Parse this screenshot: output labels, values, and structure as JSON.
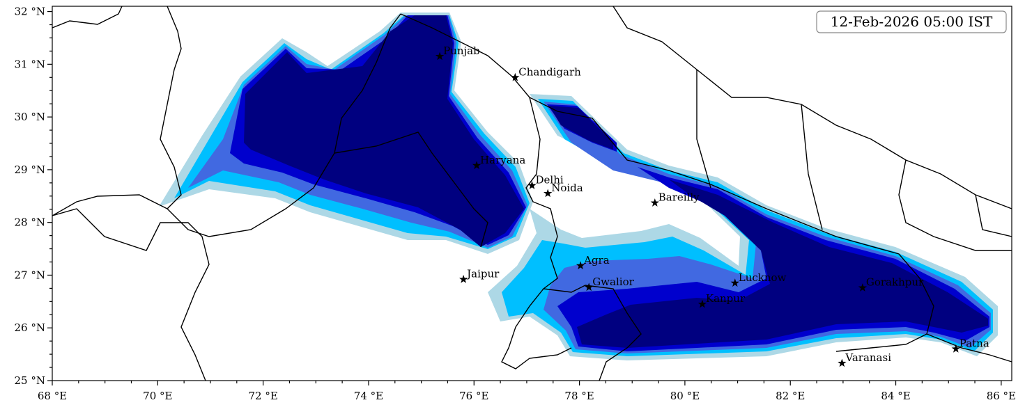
{
  "timestamp_label": "12-Feb-2026 05:00 IST",
  "map": {
    "lon_range": [
      68,
      86.2
    ],
    "lat_range": [
      25,
      32.1
    ],
    "x_ticks": [
      {
        "value": 68,
        "label": "68 °E"
      },
      {
        "value": 70,
        "label": "70 °E"
      },
      {
        "value": 72,
        "label": "72 °E"
      },
      {
        "value": 74,
        "label": "74 °E"
      },
      {
        "value": 76,
        "label": "76 °E"
      },
      {
        "value": 78,
        "label": "78 °E"
      },
      {
        "value": 80,
        "label": "80 °E"
      },
      {
        "value": 82,
        "label": "82 °E"
      },
      {
        "value": 84,
        "label": "84 °E"
      },
      {
        "value": 86,
        "label": "86 °E"
      }
    ],
    "y_ticks": [
      {
        "value": 25,
        "label": "25 °N"
      },
      {
        "value": 26,
        "label": "26 °N"
      },
      {
        "value": 27,
        "label": "27 °N"
      },
      {
        "value": 28,
        "label": "28 °N"
      },
      {
        "value": 29,
        "label": "29 °N"
      },
      {
        "value": 30,
        "label": "30 °N"
      },
      {
        "value": 31,
        "label": "31 °N"
      },
      {
        "value": 32,
        "label": "32 °N"
      }
    ],
    "shade_colors": [
      "#add8e6",
      "#00bfff",
      "#4169e1",
      "#0000cd",
      "#000080"
    ],
    "cities": [
      {
        "name": "Punjab",
        "lon": 75.35,
        "lat": 31.15
      },
      {
        "name": "Chandigarh",
        "lon": 76.78,
        "lat": 30.75
      },
      {
        "name": "Haryana",
        "lon": 76.05,
        "lat": 29.08
      },
      {
        "name": "Delhi",
        "lon": 77.1,
        "lat": 28.7
      },
      {
        "name": "Noida",
        "lon": 77.4,
        "lat": 28.55
      },
      {
        "name": "Bareilly",
        "lon": 79.43,
        "lat": 28.37
      },
      {
        "name": "Agra",
        "lon": 78.02,
        "lat": 27.18
      },
      {
        "name": "Jaipur",
        "lon": 75.8,
        "lat": 26.92
      },
      {
        "name": "Gwalior",
        "lon": 78.18,
        "lat": 26.77
      },
      {
        "name": "Lucknow",
        "lon": 80.95,
        "lat": 26.85
      },
      {
        "name": "Kanpur",
        "lon": 80.33,
        "lat": 26.45
      },
      {
        "name": "Gorakhpur",
        "lon": 83.37,
        "lat": 26.76
      },
      {
        "name": "Varanasi",
        "lon": 82.98,
        "lat": 25.33
      },
      {
        "name": "Patna",
        "lon": 85.14,
        "lat": 25.6
      }
    ]
  }
}
